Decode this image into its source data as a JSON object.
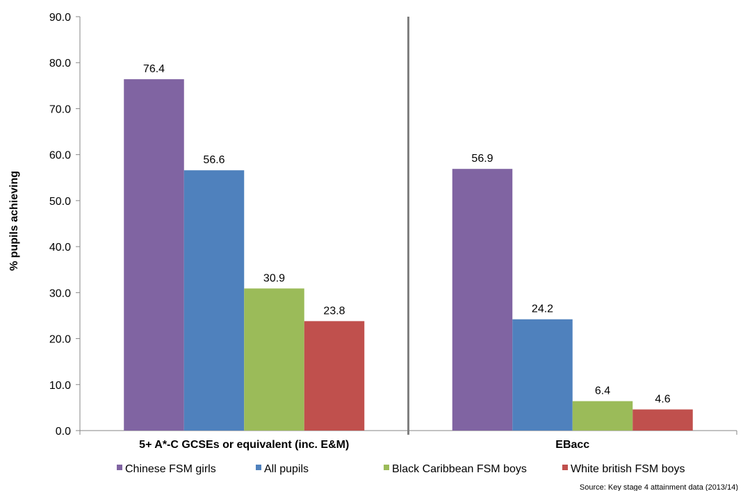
{
  "chart_data": {
    "type": "bar",
    "title": "",
    "ylabel": "% pupils achieving",
    "xlabel": "",
    "ylim": [
      0,
      90
    ],
    "yticks": [
      "0.0",
      "10.0",
      "20.0",
      "30.0",
      "40.0",
      "50.0",
      "60.0",
      "70.0",
      "80.0",
      "90.0"
    ],
    "categories": [
      "5+ A*-C GCSEs or equivalent (inc. E&M)",
      "EBacc"
    ],
    "series": [
      {
        "name": "Chinese FSM girls",
        "color": "#8064a2",
        "values": [
          76.4,
          56.9
        ],
        "labels": [
          "76.4",
          "56.9"
        ]
      },
      {
        "name": "All pupils",
        "color": "#4f81bd",
        "values": [
          56.6,
          24.2
        ],
        "labels": [
          "56.6",
          "24.2"
        ]
      },
      {
        "name": "Black Caribbean FSM boys",
        "color": "#9bbb59",
        "values": [
          30.9,
          6.4
        ],
        "labels": [
          "30.9",
          "6.4"
        ]
      },
      {
        "name": "White british FSM boys",
        "color": "#c0504d",
        "values": [
          23.8,
          4.6
        ],
        "labels": [
          "23.8",
          "4.6"
        ]
      }
    ],
    "grid": false,
    "legend_position": "bottom",
    "divider_between_categories": true,
    "source": "Source: Key stage 4 attainment data (2013/14)"
  }
}
